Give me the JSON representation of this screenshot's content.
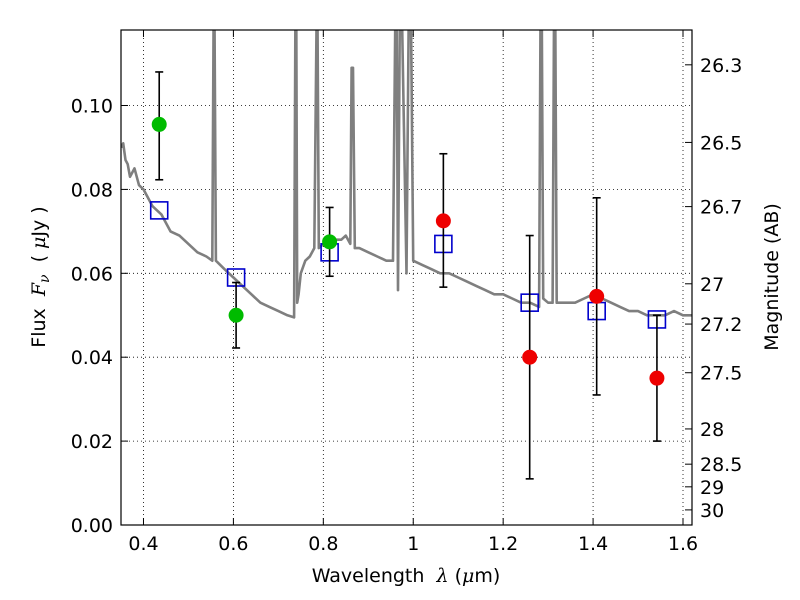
{
  "chart_data": {
    "type": "scatter",
    "xlabel": {
      "pre": "Wavelength  ",
      "sym": "λ",
      "post": " (",
      "mu": "μ",
      "unit": "m)"
    },
    "ylabel": {
      "pre": "Flux  ",
      "sym": "F",
      "sub": "ν",
      "post": "  ( ",
      "mu": "μ",
      "unit": "Jy )"
    },
    "y2label": "Magnitude (AB)",
    "xlim": [
      0.35,
      1.62
    ],
    "ylim": [
      0.0,
      0.118
    ],
    "grid": true,
    "x_ticks": [
      0.4,
      0.6,
      0.8,
      1.0,
      1.2,
      1.4,
      1.6
    ],
    "x_tick_labels": [
      "0.4",
      "0.6",
      "0.8",
      "1",
      "1.2",
      "1.4",
      "1.6"
    ],
    "y_ticks": [
      0.0,
      0.02,
      0.04,
      0.06,
      0.08,
      0.1
    ],
    "y_tick_labels": [
      "0.00",
      "0.02",
      "0.04",
      "0.06",
      "0.08",
      "0.10"
    ],
    "y2_ticks": [
      {
        "label": "26.3",
        "flux": 0.1097
      },
      {
        "label": "26.5",
        "flux": 0.0912
      },
      {
        "label": "26.7",
        "flux": 0.0759
      },
      {
        "label": "27",
        "flux": 0.0575
      },
      {
        "label": "27.2",
        "flux": 0.0479
      },
      {
        "label": "27.5",
        "flux": 0.0363
      },
      {
        "label": "28",
        "flux": 0.0229
      },
      {
        "label": "28.5",
        "flux": 0.0145
      },
      {
        "label": "29",
        "flux": 0.0091
      },
      {
        "label": "30",
        "flux": 0.0036
      }
    ],
    "series": [
      {
        "kind": "model_spectrum",
        "color": "#7f7f7f",
        "points": [
          [
            0.35,
            0.09
          ],
          [
            0.355,
            0.091
          ],
          [
            0.36,
            0.087
          ],
          [
            0.365,
            0.086
          ],
          [
            0.37,
            0.083
          ],
          [
            0.38,
            0.085
          ],
          [
            0.39,
            0.081
          ],
          [
            0.4,
            0.08
          ],
          [
            0.41,
            0.078
          ],
          [
            0.42,
            0.076
          ],
          [
            0.44,
            0.074
          ],
          [
            0.46,
            0.07
          ],
          [
            0.48,
            0.069
          ],
          [
            0.5,
            0.067
          ],
          [
            0.52,
            0.065
          ],
          [
            0.54,
            0.064
          ],
          [
            0.553,
            0.063
          ],
          [
            0.556,
            0.121
          ],
          [
            0.558,
            0.121
          ],
          [
            0.561,
            0.063
          ],
          [
            0.58,
            0.061
          ],
          [
            0.6,
            0.059
          ],
          [
            0.62,
            0.057
          ],
          [
            0.64,
            0.055
          ],
          [
            0.66,
            0.053
          ],
          [
            0.68,
            0.052
          ],
          [
            0.7,
            0.051
          ],
          [
            0.72,
            0.05
          ],
          [
            0.735,
            0.0495
          ],
          [
            0.738,
            0.121
          ],
          [
            0.74,
            0.121
          ],
          [
            0.742,
            0.053
          ],
          [
            0.745,
            0.055
          ],
          [
            0.75,
            0.06
          ],
          [
            0.76,
            0.063
          ],
          [
            0.77,
            0.064
          ],
          [
            0.78,
            0.066
          ],
          [
            0.785,
            0.121
          ],
          [
            0.787,
            0.121
          ],
          [
            0.79,
            0.066
          ],
          [
            0.8,
            0.067
          ],
          [
            0.82,
            0.068
          ],
          [
            0.84,
            0.068
          ],
          [
            0.85,
            0.069
          ],
          [
            0.86,
            0.067
          ],
          [
            0.863,
            0.109
          ],
          [
            0.866,
            0.109
          ],
          [
            0.87,
            0.066
          ],
          [
            0.88,
            0.066
          ],
          [
            0.9,
            0.065
          ],
          [
            0.92,
            0.064
          ],
          [
            0.94,
            0.063
          ],
          [
            0.955,
            0.063
          ],
          [
            0.96,
            0.121
          ],
          [
            0.963,
            0.121
          ],
          [
            0.966,
            0.056
          ],
          [
            0.97,
            0.121
          ],
          [
            0.975,
            0.121
          ],
          [
            0.985,
            0.06
          ],
          [
            0.99,
            0.121
          ],
          [
            0.995,
            0.121
          ],
          [
            1.0,
            0.063
          ],
          [
            1.02,
            0.062
          ],
          [
            1.04,
            0.061
          ],
          [
            1.06,
            0.06
          ],
          [
            1.08,
            0.06
          ],
          [
            1.1,
            0.059
          ],
          [
            1.12,
            0.058
          ],
          [
            1.14,
            0.057
          ],
          [
            1.16,
            0.056
          ],
          [
            1.18,
            0.055
          ],
          [
            1.2,
            0.055
          ],
          [
            1.22,
            0.054
          ],
          [
            1.24,
            0.053
          ],
          [
            1.26,
            0.053
          ],
          [
            1.28,
            0.052
          ],
          [
            1.283,
            0.121
          ],
          [
            1.286,
            0.121
          ],
          [
            1.289,
            0.054
          ],
          [
            1.3,
            0.053
          ],
          [
            1.31,
            0.053
          ],
          [
            1.313,
            0.121
          ],
          [
            1.316,
            0.121
          ],
          [
            1.319,
            0.053
          ],
          [
            1.34,
            0.053
          ],
          [
            1.36,
            0.053
          ],
          [
            1.38,
            0.054
          ],
          [
            1.4,
            0.055
          ],
          [
            1.42,
            0.054
          ],
          [
            1.44,
            0.053
          ],
          [
            1.46,
            0.052
          ],
          [
            1.48,
            0.051
          ],
          [
            1.5,
            0.051
          ],
          [
            1.52,
            0.05
          ],
          [
            1.54,
            0.05
          ],
          [
            1.56,
            0.05
          ],
          [
            1.58,
            0.051
          ],
          [
            1.6,
            0.05
          ],
          [
            1.62,
            0.05
          ]
        ]
      },
      {
        "kind": "model_photometry",
        "color": "#0000cc",
        "x": [
          0.435,
          0.606,
          0.814,
          1.067,
          1.259,
          1.408,
          1.542
        ],
        "y": [
          0.075,
          0.059,
          0.065,
          0.067,
          0.053,
          0.051,
          0.049
        ]
      },
      {
        "kind": "observed",
        "color": "#00bb00",
        "x": [
          0.435,
          0.606,
          0.814
        ],
        "y": [
          0.0955,
          0.05,
          0.0675
        ],
        "err_lo": [
          0.0132,
          0.0078,
          0.0082
        ],
        "err_hi": [
          0.0125,
          0.0078,
          0.0082
        ]
      },
      {
        "kind": "observed",
        "color": "#ee0000",
        "x": [
          1.067,
          1.259,
          1.408,
          1.542
        ],
        "y": [
          0.0725,
          0.04,
          0.0545,
          0.035
        ],
        "err_lo": [
          0.0158,
          0.029,
          0.0235,
          0.015
        ],
        "err_hi": [
          0.016,
          0.029,
          0.0235,
          0.015
        ]
      }
    ]
  }
}
